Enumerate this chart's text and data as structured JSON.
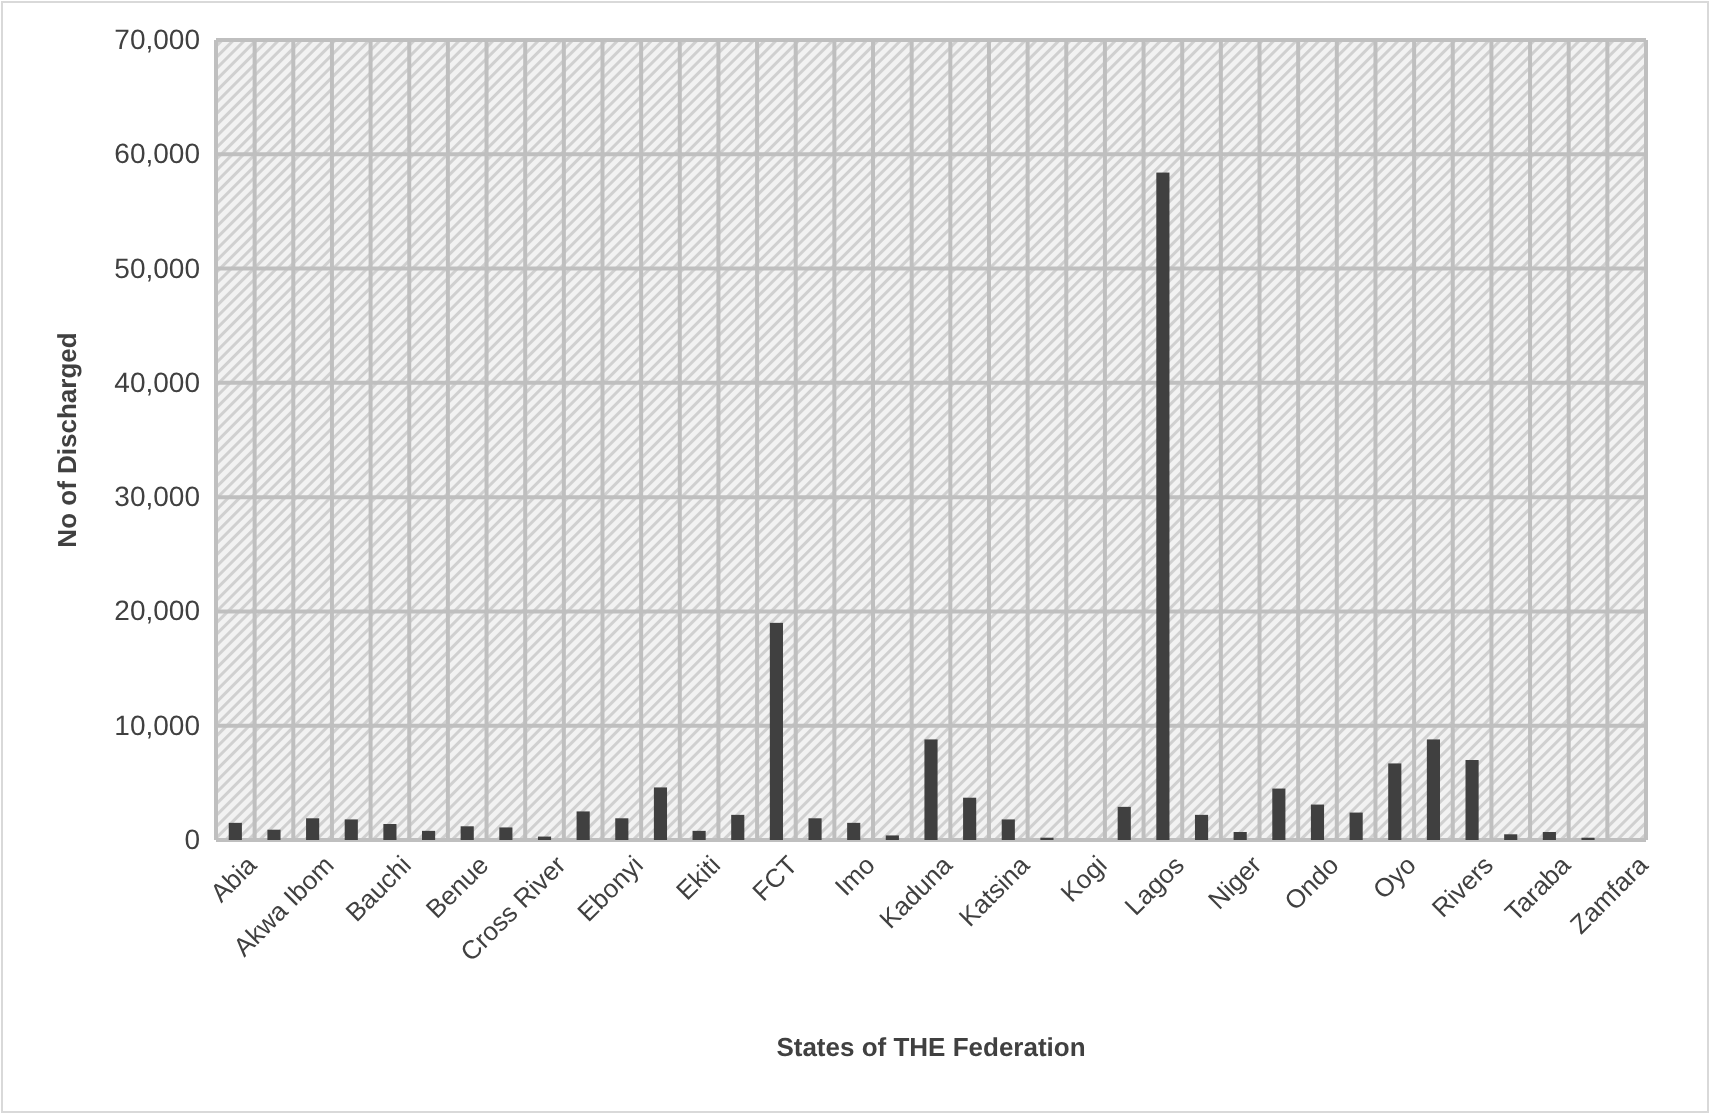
{
  "chart_data": {
    "type": "bar",
    "xlabel": "States of THE  Federation",
    "ylabel": "No of Discharged",
    "categories": [
      "Abia",
      null,
      "Akwa Ibom",
      null,
      "Bauchi",
      null,
      "Benue",
      null,
      "Cross River",
      null,
      "Ebonyi",
      null,
      "Ekiti",
      null,
      "FCT",
      null,
      "Imo",
      null,
      "Kaduna",
      null,
      "Katsina",
      null,
      "Kogi",
      null,
      "Lagos",
      null,
      "Niger",
      null,
      "Ondo",
      null,
      "Oyo",
      null,
      "Rivers",
      null,
      "Taraba",
      null,
      "Zamfara"
    ],
    "values": [
      1500,
      900,
      1900,
      1800,
      1400,
      800,
      1200,
      1100,
      300,
      2500,
      1900,
      4600,
      800,
      2200,
      19000,
      1900,
      1500,
      400,
      8800,
      3700,
      1800,
      200,
      0,
      2900,
      58400,
      2200,
      700,
      4500,
      3100,
      2400,
      6700,
      8800,
      7000,
      500,
      700,
      200,
      0
    ],
    "color": "#404040",
    "ylim": [
      0,
      70000
    ],
    "yticks": [
      {
        "value": 0,
        "label": "0"
      },
      {
        "value": 10000,
        "label": "10,000"
      },
      {
        "value": 20000,
        "label": "20,000"
      },
      {
        "value": 30000,
        "label": "30,000"
      },
      {
        "value": 40000,
        "label": "40,000"
      },
      {
        "value": 50000,
        "label": "50,000"
      },
      {
        "value": 60000,
        "label": "60,000"
      },
      {
        "value": 70000,
        "label": "70,000"
      }
    ],
    "grid": true
  }
}
